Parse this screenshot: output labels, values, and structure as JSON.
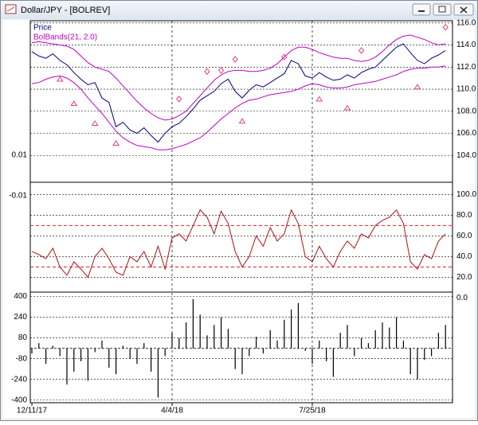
{
  "window": {
    "title": "Dollar/JPY  -  [BOLREV]"
  },
  "extra_labels": [
    "0.01",
    "-0.01"
  ],
  "chart_data": [
    {
      "type": "line",
      "xlim": [
        0,
        60
      ],
      "ylim": [
        102,
        116.2
      ],
      "yticks": [
        {
          "value": 116,
          "label": "116.0"
        },
        {
          "value": 114,
          "label": "114.0"
        },
        {
          "value": 112,
          "label": "112.0"
        },
        {
          "value": 110,
          "label": "110.0"
        },
        {
          "value": 108,
          "label": "108.0"
        },
        {
          "value": 106,
          "label": "106.0"
        },
        {
          "value": 104,
          "label": "104.0"
        }
      ],
      "grid": true,
      "series": [
        {
          "name": "Price",
          "color": "#000080",
          "values": [
            113.4,
            113.0,
            112.8,
            113.2,
            112.6,
            112.2,
            111.5,
            110.9,
            110.4,
            110.6,
            109.2,
            108.8,
            106.6,
            107.0,
            106.3,
            106.0,
            106.5,
            105.8,
            105.2,
            106.0,
            106.6,
            106.9,
            107.5,
            108.2,
            109.0,
            109.4,
            109.8,
            110.5,
            110.9,
            109.8,
            109.2,
            109.9,
            110.4,
            110.2,
            110.6,
            111.0,
            111.4,
            112.6,
            112.3,
            111.2,
            111.0,
            111.5,
            111.1,
            110.8,
            110.9,
            111.3,
            111.0,
            111.5,
            111.8,
            112.0,
            112.6,
            113.2,
            113.8,
            114.1,
            113.3,
            112.6,
            112.3,
            112.8,
            113.1,
            113.5
          ]
        },
        {
          "name": "BolBands(21, 2.0)",
          "color": "#c000c0",
          "values": [
            114.2,
            114.3,
            114.2,
            114.1,
            114.0,
            113.9,
            113.6,
            113.0,
            112.4,
            112.0,
            111.8,
            111.6,
            111.0,
            110.3,
            109.6,
            108.9,
            108.3,
            107.8,
            107.4,
            107.2,
            107.3,
            107.6,
            108.0,
            108.7,
            109.4,
            110.1,
            110.8,
            111.3,
            111.6,
            111.7,
            111.7,
            111.6,
            111.6,
            111.7,
            111.9,
            112.3,
            112.9,
            113.5,
            113.8,
            113.8,
            113.6,
            113.3,
            113.1,
            112.9,
            112.8,
            112.8,
            112.6,
            112.5,
            112.6,
            112.9,
            113.4,
            114.0,
            114.5,
            114.8,
            114.9,
            114.7,
            114.5,
            114.2,
            114.0,
            114.1
          ],
          "lower": [
            110.5,
            110.6,
            110.9,
            111.1,
            111.2,
            111.0,
            110.6,
            110.0,
            109.2,
            108.5,
            107.8,
            107.0,
            106.2,
            105.6,
            105.2,
            104.9,
            104.8,
            104.7,
            104.5,
            104.5,
            104.6,
            104.8,
            105.0,
            105.3,
            105.6,
            106.1,
            106.7,
            107.3,
            107.8,
            108.3,
            108.7,
            109.0,
            109.1,
            109.3,
            109.5,
            109.6,
            109.7,
            109.8,
            110.0,
            110.3,
            110.5,
            110.4,
            110.2,
            110.1,
            110.1,
            110.2,
            110.4,
            110.5,
            110.6,
            110.7,
            110.9,
            111.1,
            111.3,
            111.6,
            111.8,
            111.9,
            111.9,
            112.0,
            112.0,
            112.1
          ]
        }
      ],
      "markers": [
        {
          "shape": "diamond",
          "color": "#e0407c",
          "x": [
            21,
            25,
            27,
            29,
            36,
            47,
            59
          ],
          "values": [
            109.1,
            111.6,
            111.7,
            112.7,
            112.9,
            113.5,
            115.6
          ]
        },
        {
          "shape": "triangle",
          "color": "#e0407c",
          "x": [
            4,
            6,
            9,
            12,
            30,
            41,
            45,
            55
          ],
          "values": [
            110.9,
            108.7,
            106.9,
            105.1,
            107.1,
            109.1,
            108.3,
            110.2
          ]
        }
      ]
    },
    {
      "type": "line",
      "xlim": [
        0,
        60
      ],
      "ylim": [
        5,
        111
      ],
      "yticks": [
        {
          "value": 100,
          "label": "100.0"
        },
        {
          "value": 80,
          "label": "80.0"
        },
        {
          "value": 60,
          "label": "60.0"
        },
        {
          "value": 40,
          "label": "40.0"
        },
        {
          "value": 20,
          "label": "20.0"
        },
        {
          "value": 0,
          "label": "0.0"
        }
      ],
      "grid": true,
      "hlines": [
        70,
        30
      ],
      "hline_color": "#e02020",
      "series": [
        {
          "color": "#b01010",
          "values": [
            45,
            42,
            38,
            48,
            30,
            22,
            35,
            28,
            20,
            40,
            48,
            38,
            25,
            22,
            40,
            35,
            45,
            30,
            50,
            28,
            58,
            62,
            55,
            70,
            85,
            78,
            62,
            84,
            72,
            45,
            30,
            40,
            60,
            50,
            68,
            55,
            62,
            85,
            72,
            40,
            35,
            50,
            38,
            30,
            45,
            55,
            48,
            62,
            58,
            70,
            75,
            78,
            85,
            72,
            35,
            28,
            42,
            38,
            55,
            62
          ]
        }
      ]
    },
    {
      "type": "bar",
      "xlim": [
        0,
        60
      ],
      "ylim": [
        -420,
        440
      ],
      "color": "#000000",
      "yticks": [
        400,
        240,
        80,
        -80,
        -240,
        -400
      ],
      "grid": true,
      "xticks": [
        {
          "value": 0,
          "label": "12/11/17"
        },
        {
          "value": 20,
          "label": "4/4/18"
        },
        {
          "value": 40,
          "label": "7/25/18"
        }
      ],
      "values": [
        -40,
        40,
        -120,
        20,
        -60,
        -280,
        -180,
        -100,
        -250,
        -30,
        60,
        -150,
        -200,
        20,
        -80,
        -120,
        40,
        -180,
        -380,
        -60,
        120,
        80,
        200,
        380,
        260,
        100,
        180,
        240,
        150,
        -160,
        -200,
        -60,
        90,
        -40,
        140,
        60,
        220,
        300,
        350,
        -20,
        -120,
        60,
        -100,
        -220,
        120,
        180,
        -60,
        80,
        40,
        140,
        200,
        160,
        240,
        60,
        -200,
        -240,
        -90,
        -60,
        120,
        180
      ]
    }
  ]
}
